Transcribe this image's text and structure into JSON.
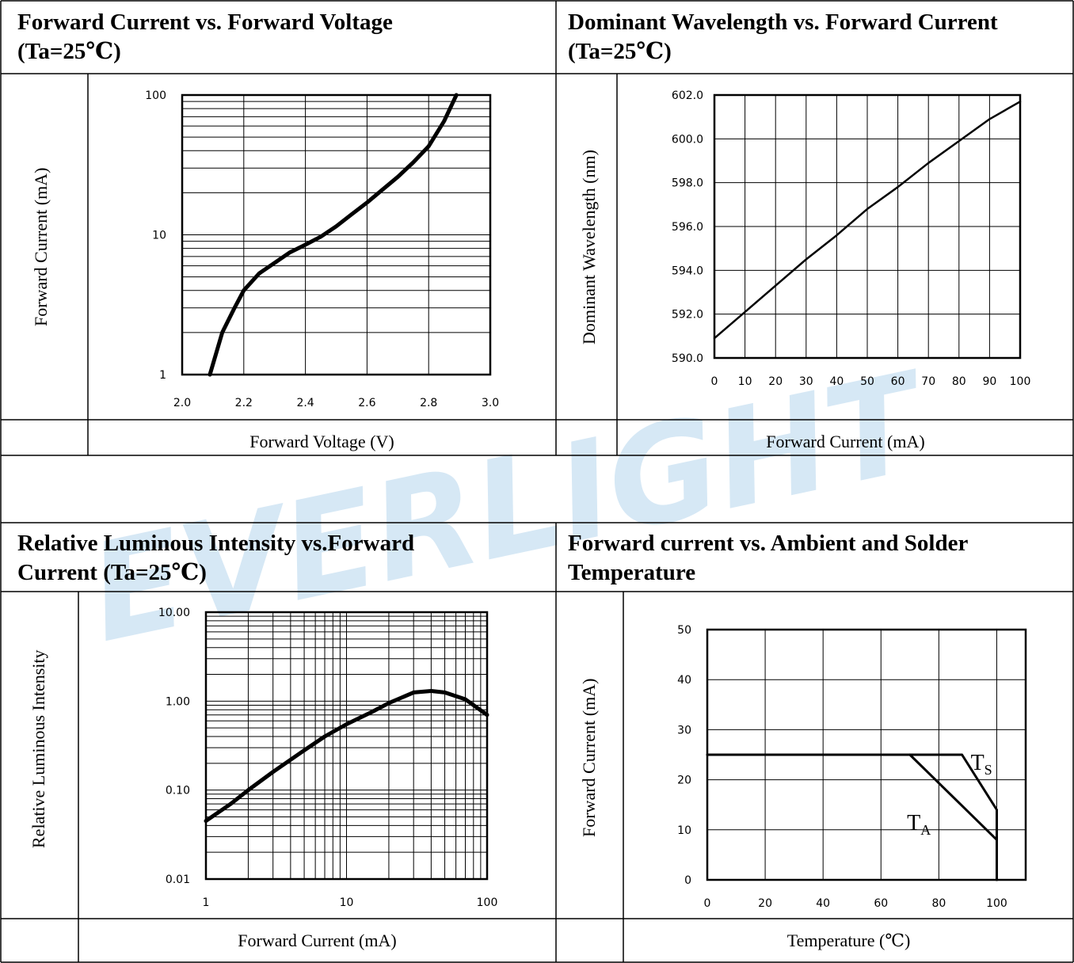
{
  "watermark": "EVERLIGHT",
  "colors": {
    "grid": "#000000",
    "curve": "#000000",
    "watermark": "#d6e8f5"
  },
  "chart_data": [
    {
      "type": "line",
      "title_line1": "Forward Current vs. Forward Voltage",
      "title_line2": "(Ta=25℃)",
      "xlabel": "Forward Voltage (V)",
      "ylabel": "Forward Current (mA)",
      "xlim": [
        2.0,
        3.0
      ],
      "ylim": [
        1,
        100
      ],
      "yscale": "log",
      "x_ticks": [
        "2.0",
        "2.2",
        "2.4",
        "2.6",
        "2.8",
        "3.0"
      ],
      "y_ticks": [
        "1",
        "10",
        "100"
      ],
      "grid": true,
      "series": [
        {
          "x": [
            2.09,
            2.13,
            2.17,
            2.2,
            2.25,
            2.3,
            2.35,
            2.4,
            2.45,
            2.5,
            2.55,
            2.6,
            2.65,
            2.7,
            2.75,
            2.8,
            2.85,
            2.89
          ],
          "y": [
            1,
            2,
            3,
            4,
            5.3,
            6.3,
            7.5,
            8.5,
            9.7,
            11.5,
            14,
            17,
            21,
            26,
            33,
            43,
            65,
            100
          ]
        }
      ]
    },
    {
      "type": "line",
      "title_line1": "Dominant Wavelength vs. Forward Current",
      "title_line2": "(Ta=25℃)",
      "xlabel": "Forward Current (mA)",
      "ylabel": "Dominant Wavelength (nm)",
      "xlim": [
        0,
        100
      ],
      "ylim": [
        590,
        602
      ],
      "x_ticks": [
        "0",
        "10",
        "20",
        "30",
        "40",
        "50",
        "60",
        "70",
        "80",
        "90",
        "100"
      ],
      "y_ticks": [
        "590.0",
        "592.0",
        "594.0",
        "596.0",
        "598.0",
        "600.0",
        "602.0"
      ],
      "grid": true,
      "series": [
        {
          "x": [
            0,
            10,
            20,
            30,
            40,
            50,
            60,
            70,
            80,
            90,
            100
          ],
          "y": [
            590.9,
            592.1,
            593.3,
            594.5,
            595.6,
            596.8,
            597.8,
            598.9,
            599.9,
            600.9,
            601.7
          ]
        }
      ]
    },
    {
      "type": "line",
      "title_line1": "Relative Luminous Intensity vs.Forward",
      "title_line2": "Current (Ta=25℃)",
      "xlabel": "Forward Current (mA)",
      "ylabel": "Relative Luminous Intensity",
      "xlim": [
        1,
        100
      ],
      "ylim": [
        0.01,
        10
      ],
      "xscale": "log",
      "yscale": "log",
      "x_ticks": [
        "1",
        "10",
        "100"
      ],
      "y_ticks": [
        "0.01",
        "0.10",
        "1.00",
        "10.00"
      ],
      "grid": true,
      "series": [
        {
          "x": [
            1,
            1.5,
            2,
            3,
            5,
            7,
            10,
            15,
            20,
            30,
            40,
            50,
            70,
            100
          ],
          "y": [
            0.045,
            0.07,
            0.1,
            0.16,
            0.28,
            0.4,
            0.55,
            0.75,
            0.95,
            1.25,
            1.3,
            1.25,
            1.05,
            0.7
          ]
        }
      ]
    },
    {
      "type": "line",
      "title_line1": "Forward current vs. Ambient and Solder",
      "title_line2": "Temperature",
      "xlabel": "Temperature (℃)",
      "ylabel": "Forward Current (mA)",
      "xlim": [
        0,
        110
      ],
      "ylim": [
        0,
        50
      ],
      "x_ticks": [
        "0",
        "20",
        "40",
        "60",
        "80",
        "100"
      ],
      "y_ticks": [
        "0",
        "10",
        "20",
        "30",
        "40",
        "50"
      ],
      "grid": true,
      "series": [
        {
          "name": "TS",
          "x": [
            0,
            88,
            100,
            100
          ],
          "y": [
            25,
            25,
            14,
            0
          ]
        },
        {
          "name": "TA",
          "x": [
            70,
            100,
            100
          ],
          "y": [
            25,
            8,
            0
          ]
        }
      ],
      "annotations": [
        {
          "main": "T",
          "sub": "S",
          "x": 91,
          "y": 22
        },
        {
          "main": "T",
          "sub": "A",
          "x": 69,
          "y": 10
        }
      ]
    }
  ]
}
